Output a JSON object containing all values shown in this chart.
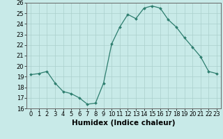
{
  "x": [
    0,
    1,
    2,
    3,
    4,
    5,
    6,
    7,
    8,
    9,
    10,
    11,
    12,
    13,
    14,
    15,
    16,
    17,
    18,
    19,
    20,
    21,
    22,
    23
  ],
  "y": [
    19.2,
    19.3,
    19.5,
    18.4,
    17.6,
    17.4,
    17.0,
    16.4,
    16.5,
    18.4,
    22.1,
    23.7,
    24.9,
    24.5,
    25.5,
    25.7,
    25.5,
    24.4,
    23.7,
    22.7,
    21.8,
    20.9,
    19.5,
    19.3
  ],
  "line_color": "#2d7d6e",
  "marker": "D",
  "marker_size": 2.0,
  "bg_color": "#c8eae8",
  "grid_color": "#aacfcc",
  "xlabel": "Humidex (Indice chaleur)",
  "ylim": [
    16,
    26
  ],
  "xlim": [
    -0.5,
    23.5
  ],
  "yticks": [
    16,
    17,
    18,
    19,
    20,
    21,
    22,
    23,
    24,
    25,
    26
  ],
  "xticks": [
    0,
    1,
    2,
    3,
    4,
    5,
    6,
    7,
    8,
    9,
    10,
    11,
    12,
    13,
    14,
    15,
    16,
    17,
    18,
    19,
    20,
    21,
    22,
    23
  ],
  "label_fontsize": 7.5,
  "tick_fontsize": 6.0
}
